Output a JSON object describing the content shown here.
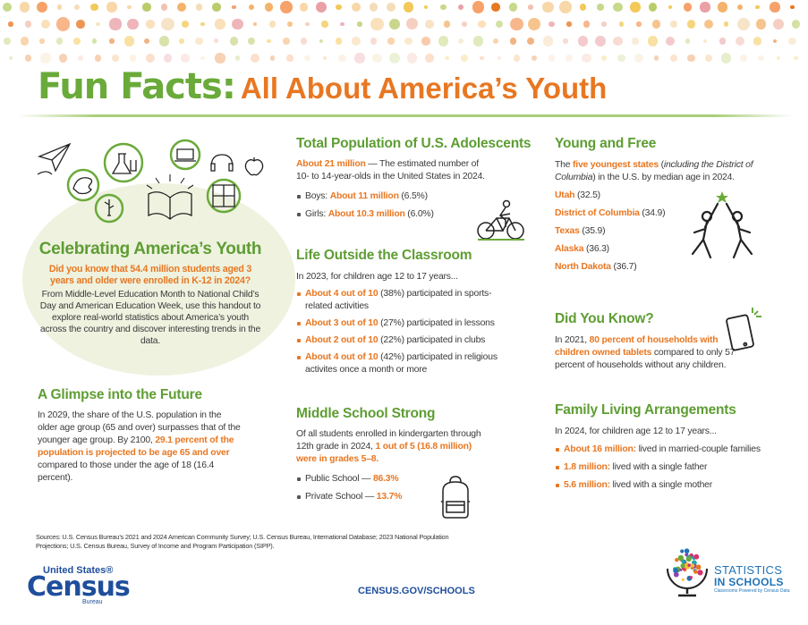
{
  "header": {
    "title_main": "Fun Facts:",
    "title_sub": "All About America’s Youth"
  },
  "celebrating": {
    "title": "Celebrating America’s Youth",
    "highlight": "Did you know that 54.4 million students aged 3 years and older were enrolled in K-12 in 2024?",
    "body": "From Middle-Level Education Month to National Child’s Day and American Education Week, use this handout to explore real-world statistics about America’s youth across the country and discover interesting trends in the data."
  },
  "future": {
    "title": "A Glimpse into the Future",
    "text_before": "In 2029, the share of the U.S. population in the older age group (65 and over) surpasses that of the younger age group. By 2100, ",
    "highlight": "29.1 percent of the population is projected to be age 65 and over",
    "text_after": " compared to those under the age of 18 (16.4 percent)."
  },
  "adolescents": {
    "title": "Total Population of U.S. Adolescents",
    "highlight": "About 21 million",
    "text": " — The estimated number of 10- to 14-year-olds in the United States in 2024.",
    "items": [
      {
        "label": "Boys: ",
        "value": "About 11 million",
        "pct": " (6.5%)"
      },
      {
        "label": "Girls: ",
        "value": "About 10.3 million",
        "pct": " (6.0%)"
      }
    ]
  },
  "classroom": {
    "title": "Life Outside the Classroom",
    "intro": "In 2023, for children age 12 to 17 years...",
    "items": [
      {
        "value": "About 4 out of 10",
        "text": " (38%) participated in sports-related activities"
      },
      {
        "value": "About 3 out of 10",
        "text": " (27%) participated in lessons"
      },
      {
        "value": "About 2 out of 10",
        "text": " (22%) participated in clubs"
      },
      {
        "value": "About 4 out of 10",
        "text": " (42%) participated in religious activites once a month or more"
      }
    ]
  },
  "middle_school": {
    "title": "Middle School Strong",
    "text": "Of all students enrolled in kindergarten through 12th grade in 2024, ",
    "highlight": "1 out of 5 (16.8 million) were in grades 5–8.",
    "items": [
      {
        "label": "Public School — ",
        "value": "86.3%"
      },
      {
        "label": "Private School — ",
        "value": "13.7%"
      }
    ]
  },
  "young_free": {
    "title": "Young and Free",
    "intro_a": "The ",
    "intro_hl": "five youngest states",
    "intro_b": " (",
    "intro_it": "including the District of Columbia",
    "intro_c": ") in the U.S. by median age in 2024.",
    "states": [
      {
        "name": "Utah",
        "age": " (32.5)"
      },
      {
        "name": "District of Columbia",
        "age": " (34.9)"
      },
      {
        "name": "Texas",
        "age": " (35.9)"
      },
      {
        "name": "Alaska",
        "age": " (36.3)"
      },
      {
        "name": "North Dakota",
        "age": " (36.7)"
      }
    ]
  },
  "did_you_know": {
    "title": "Did You Know?",
    "text_a": "In 2021, ",
    "highlight": "80 percent of households with children owned tablets",
    "text_b": " compared to only 57 percent of households without any children."
  },
  "family": {
    "title": "Family Living Arrangements",
    "intro": "In 2024, for children age 12 to 17 years...",
    "items": [
      {
        "value": "About 16 million:",
        "text": " lived in married-couple families"
      },
      {
        "value": "1.8 million:",
        "text": " lived with a single father"
      },
      {
        "value": "5.6 million:",
        "text": " lived with a single mother"
      }
    ]
  },
  "footer": {
    "sources": "Sources: U.S. Census Bureau’s 2021 and 2024 American Community Survey; U.S. Census Bureau, International Database; 2023 National Population Projections; U.S. Census Bureau, Survey of Income and Program Participation (SIPP).",
    "url": "CENSUS.GOV/SCHOOLS",
    "logo_line1": "United States®",
    "logo_line2": "Census",
    "logo_line3": "Bureau",
    "sis_line1": "STATISTICS",
    "sis_line2": "IN SCHOOLS",
    "sis_line3": "Classrooms Powered by Census Data"
  },
  "colors": {
    "green": "#5e9d33",
    "orange": "#e87722",
    "blue": "#1f4e9c"
  }
}
